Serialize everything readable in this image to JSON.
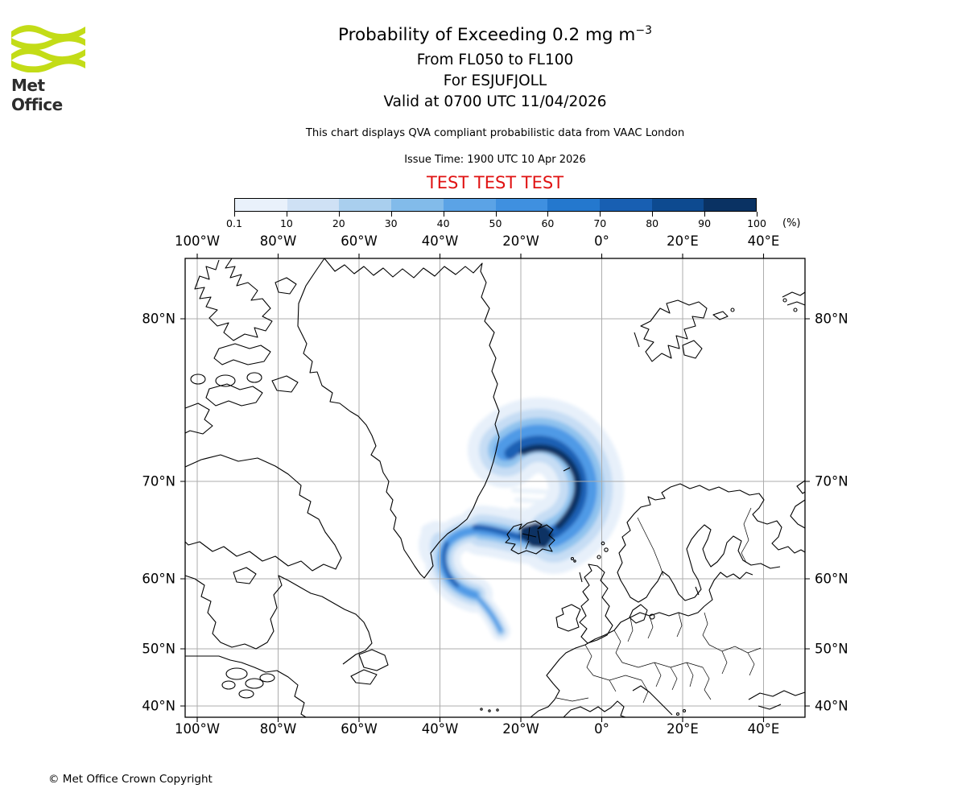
{
  "brand": {
    "logo_text": "Met Office",
    "logo_green": "#c3dc17"
  },
  "header": {
    "title_prefix": "Probability of Exceeding 0.2 mg m",
    "title_exponent": "−3",
    "line_flight_levels": "From FL050 to FL100",
    "line_volcano": "For ESJUFJOLL",
    "line_valid": "Valid at 0700 UTC 11/04/2026",
    "note": "This chart displays QVA compliant probabilistic data from VAAC London",
    "issue_time": "Issue Time: 1900 UTC 10 Apr 2026",
    "test_banner": "TEST TEST TEST",
    "test_color": "#e01212"
  },
  "colorbar": {
    "tick_labels": [
      "0.1",
      "10",
      "20",
      "30",
      "40",
      "50",
      "60",
      "70",
      "80",
      "90",
      "100"
    ],
    "unit_label": "(%)",
    "colors": [
      "#e9f1fb",
      "#cfe1f5",
      "#a9cfee",
      "#82bbea",
      "#5ba3e6",
      "#3f90e0",
      "#2478ce",
      "#185fb2",
      "#0d4a90",
      "#0a3263"
    ]
  },
  "map_axes": {
    "lon_labels": [
      "100°W",
      "80°W",
      "60°W",
      "40°W",
      "20°W",
      "0°",
      "20°E",
      "40°E"
    ],
    "lat_labels": [
      "80°N",
      "70°N",
      "60°N",
      "50°N",
      "40°N"
    ]
  },
  "footer": {
    "copyright": "© Met Office Crown Copyright"
  },
  "chart_data": {
    "type": "heatmap",
    "title": "Probability of Exceeding 0.2 mg m^-3",
    "subtitle": [
      "From FL050 to FL100",
      "For ESJUFJOLL",
      "Valid at 0700 UTC 11/04/2026"
    ],
    "issue_time": "1900 UTC 10 Apr 2026",
    "source": "VAAC London QVA probabilistic data",
    "legend": {
      "units": "%",
      "bin_edges": [
        0.1,
        10,
        20,
        30,
        40,
        50,
        60,
        70,
        80,
        90,
        100
      ],
      "colors": [
        "#e9f1fb",
        "#cfe1f5",
        "#a9cfee",
        "#82bbea",
        "#5ba3e6",
        "#3f90e0",
        "#2478ce",
        "#185fb2",
        "#0d4a90",
        "#0a3263"
      ]
    },
    "x_axis": {
      "label": "longitude",
      "tick_labels": [
        "100°W",
        "80°W",
        "60°W",
        "40°W",
        "20°W",
        "0°",
        "20°E",
        "40°E"
      ],
      "approx_range_deg": [
        -103,
        50
      ]
    },
    "y_axis": {
      "label": "latitude",
      "tick_labels": [
        "80°N",
        "70°N",
        "60°N",
        "50°N",
        "40°N"
      ],
      "approx_range_deg": [
        38,
        85
      ]
    },
    "grid": true,
    "projection_note": "meridians drawn vertical and evenly spaced; parallel spacing increases toward the pole",
    "plume_features": [
      {
        "region": "dark arc core northeast of Iceland",
        "approx_lon": -8,
        "approx_lat": 70.5,
        "probability_percent": 100
      },
      {
        "region": "over southeast Iceland near source volcano",
        "approx_lon": -16.5,
        "approx_lat": 64.3,
        "probability_percent": 100
      },
      {
        "region": "band extending southwest from Iceland",
        "approx_lon": -30,
        "approx_lat": 63.5,
        "probability_percent": 60
      },
      {
        "region": "cyclonic curl south of the band",
        "approx_lon": -33,
        "approx_lat": 60,
        "probability_percent": 40
      },
      {
        "region": "thin filament tail trailing south",
        "approx_lon": -28,
        "approx_lat": 54,
        "probability_percent": 30
      },
      {
        "region": "outer pale envelope of whole comma-shaped plume",
        "probability_percent": 0.1
      }
    ]
  }
}
